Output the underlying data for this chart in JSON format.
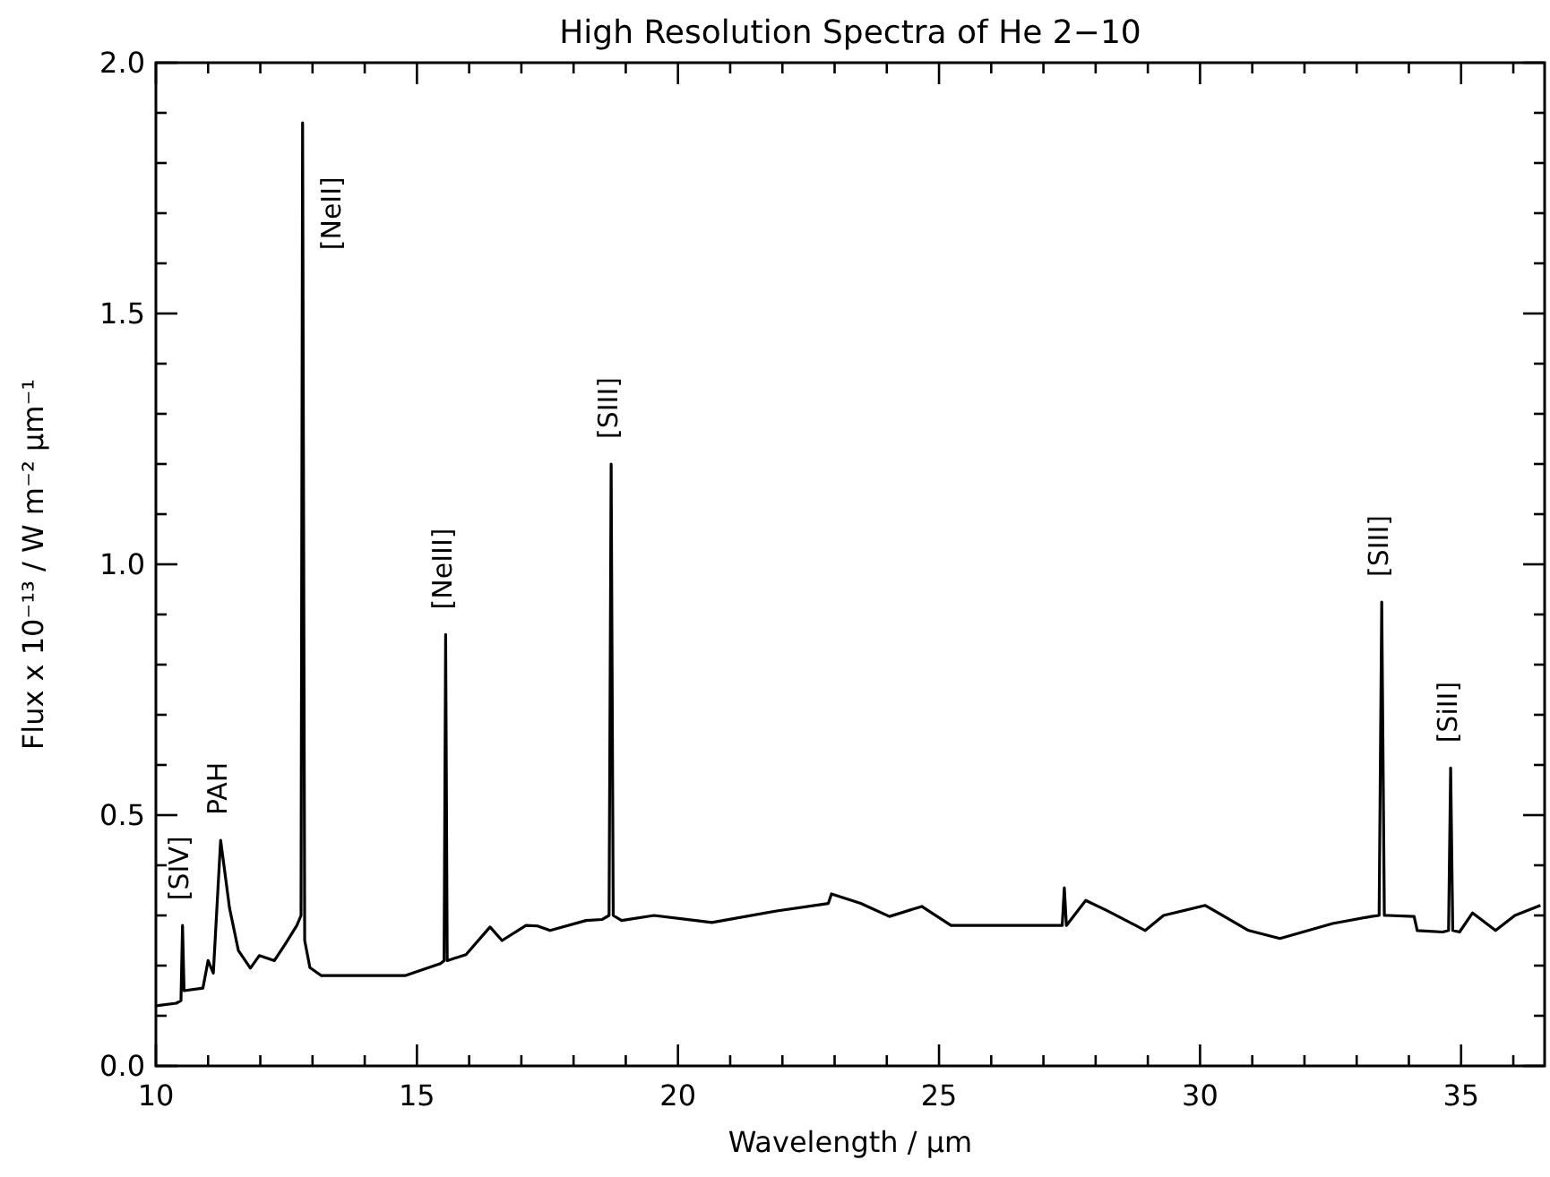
{
  "chart_data": {
    "type": "line",
    "title": "High Resolution Spectra of He 2−10",
    "xlabel": "Wavelength / μm",
    "ylabel": "Flux x 10⁻¹³ / W m⁻² μm⁻¹",
    "xlim": [
      10,
      36.6
    ],
    "ylim": [
      0,
      2.0
    ],
    "xticks": [
      10,
      {
        "value": 11,
        "label": null
      },
      {
        "value": 12,
        "label": null
      },
      {
        "value": 13,
        "label": null
      },
      {
        "value": 14,
        "label": null
      },
      15,
      {
        "value": 16,
        "label": null
      },
      {
        "value": 17,
        "label": null
      },
      {
        "value": 18,
        "label": null
      },
      {
        "value": 19,
        "label": null
      },
      20,
      {
        "value": 21,
        "label": null
      },
      {
        "value": 22,
        "label": null
      },
      {
        "value": 23,
        "label": null
      },
      {
        "value": 24,
        "label": null
      },
      25,
      {
        "value": 26,
        "label": null
      },
      {
        "value": 27,
        "label": null
      },
      {
        "value": 28,
        "label": null
      },
      {
        "value": 29,
        "label": null
      },
      30,
      {
        "value": 31,
        "label": null
      },
      {
        "value": 32,
        "label": null
      },
      {
        "value": 33,
        "label": null
      },
      {
        "value": 34,
        "label": null
      },
      35,
      {
        "value": 36,
        "label": null
      }
    ],
    "yticks": [
      {
        "value": 0,
        "label": "0.0"
      },
      {
        "value": 0.1,
        "label": null
      },
      {
        "value": 0.2,
        "label": null
      },
      {
        "value": 0.3,
        "label": null
      },
      {
        "value": 0.4,
        "label": null
      },
      0.5,
      {
        "value": 0.6,
        "label": null
      },
      {
        "value": 0.7,
        "label": null
      },
      {
        "value": 0.8,
        "label": null
      },
      {
        "value": 0.9,
        "label": null
      },
      {
        "value": 1,
        "label": "1.0"
      },
      {
        "value": 1.1,
        "label": null
      },
      {
        "value": 1.2,
        "label": null
      },
      {
        "value": 1.3,
        "label": null
      },
      {
        "value": 1.4,
        "label": null
      },
      1.5,
      {
        "value": 1.6,
        "label": null
      },
      {
        "value": 1.7,
        "label": null
      },
      {
        "value": 1.8,
        "label": null
      },
      {
        "value": 1.9,
        "label": null
      },
      {
        "value": 2,
        "label": "2.0"
      }
    ],
    "grid": false,
    "marker": "none",
    "line_style": "solid",
    "series": [
      {
        "color": "#000000",
        "x": [
          10.0,
          10.39,
          10.48,
          10.51,
          10.54,
          10.9,
          11.0,
          11.1,
          11.24,
          11.41,
          11.58,
          11.81,
          11.98,
          12.27,
          12.49,
          12.7,
          12.78,
          12.81,
          12.85,
          12.95,
          13.17,
          13.97,
          14.77,
          15.45,
          15.52,
          15.55,
          15.58,
          15.94,
          16.4,
          16.63,
          17.09,
          17.31,
          17.55,
          18.24,
          18.55,
          18.68,
          18.72,
          18.76,
          18.92,
          19.54,
          20.65,
          21.89,
          22.88,
          22.94,
          23.5,
          24.05,
          24.67,
          25.23,
          25.97,
          26.84,
          27.36,
          27.4,
          27.44,
          27.81,
          28.21,
          28.95,
          29.3,
          30.1,
          30.93,
          31.53,
          32.54,
          33.28,
          33.43,
          33.48,
          33.53,
          33.6,
          34.1,
          34.16,
          34.65,
          34.76,
          34.8,
          34.84,
          34.97,
          35.22,
          35.66,
          36.03,
          36.52
        ],
        "values": [
          0.12,
          0.125,
          0.13,
          0.28,
          0.15,
          0.155,
          0.21,
          0.185,
          0.45,
          0.315,
          0.23,
          0.195,
          0.22,
          0.21,
          0.245,
          0.28,
          0.3,
          1.88,
          0.25,
          0.196,
          0.18,
          0.18,
          0.18,
          0.204,
          0.21,
          0.86,
          0.21,
          0.222,
          0.277,
          0.25,
          0.28,
          0.279,
          0.27,
          0.29,
          0.292,
          0.3,
          1.2,
          0.3,
          0.29,
          0.3,
          0.286,
          0.309,
          0.324,
          0.343,
          0.324,
          0.298,
          0.318,
          0.28,
          0.28,
          0.28,
          0.28,
          0.355,
          0.28,
          0.33,
          0.31,
          0.27,
          0.3,
          0.32,
          0.27,
          0.254,
          0.284,
          0.298,
          0.3,
          0.925,
          0.3,
          0.3,
          0.298,
          0.27,
          0.267,
          0.27,
          0.594,
          0.27,
          0.267,
          0.305,
          0.27,
          0.3,
          0.32
        ]
      }
    ],
    "annotations": [
      {
        "text": "[SIV]",
        "x": 10.51,
        "y": 0.28
      },
      {
        "text": "PAH",
        "x": 11.24,
        "y": 0.45
      },
      {
        "text": "[NeII]",
        "x": 12.81,
        "y": 1.88
      },
      {
        "text": "[NeIII]",
        "x": 15.55,
        "y": 0.86
      },
      {
        "text": "[SIII]",
        "x": 18.72,
        "y": 1.2
      },
      {
        "text": "[SIII]",
        "x": 33.48,
        "y": 0.925
      },
      {
        "text": "[SiII]",
        "x": 34.8,
        "y": 0.594
      }
    ]
  }
}
